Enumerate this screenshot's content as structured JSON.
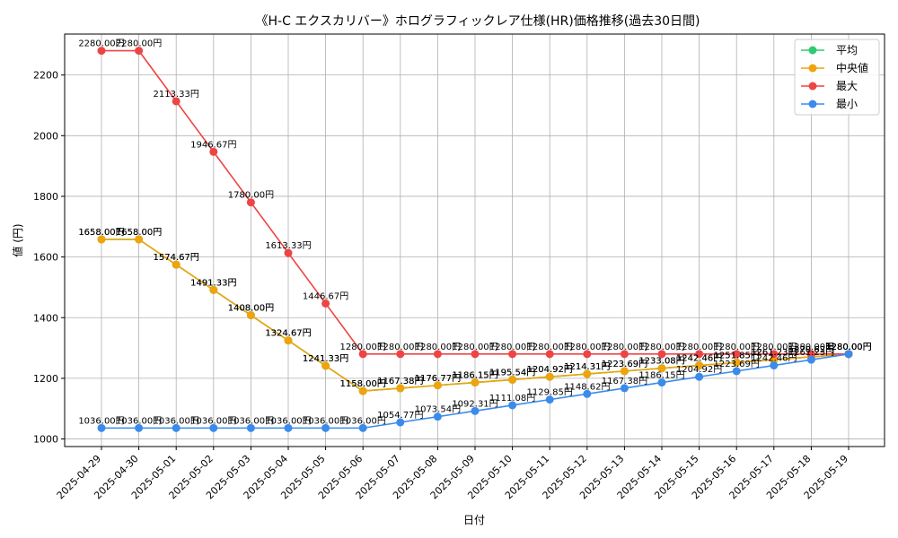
{
  "chart_data": {
    "type": "line",
    "title": "《H-C エクスカリバー》ホログラフィックレア仕様(HR)価格推移(過去30日間)",
    "xlabel": "日付",
    "ylabel": "値 (円)",
    "ylim": [
      975,
      2335
    ],
    "yticks": [
      1000,
      1200,
      1400,
      1600,
      1800,
      2000,
      2200
    ],
    "grid": true,
    "legend_position": "top-right",
    "categories": [
      "2025-04-29",
      "2025-04-30",
      "2025-05-01",
      "2025-05-02",
      "2025-05-03",
      "2025-05-04",
      "2025-05-05",
      "2025-05-06",
      "2025-05-07",
      "2025-05-08",
      "2025-05-09",
      "2025-05-10",
      "2025-05-11",
      "2025-05-12",
      "2025-05-13",
      "2025-05-14",
      "2025-05-15",
      "2025-05-16",
      "2025-05-17",
      "2025-05-18",
      "2025-05-19"
    ],
    "series": [
      {
        "name": "平均",
        "color": "#2ecc71",
        "values": [
          1658.0,
          1658.0,
          1574.67,
          1491.33,
          1408.0,
          1324.67,
          1241.33,
          1158.0,
          1167.38,
          1176.77,
          1186.15,
          1195.54,
          1204.92,
          1214.31,
          1223.69,
          1233.08,
          1242.46,
          1251.85,
          1261.23,
          1270.62,
          1280.0
        ]
      },
      {
        "name": "中央値",
        "color": "#f0a30a",
        "values": [
          1658.0,
          1658.0,
          1574.67,
          1491.33,
          1408.0,
          1324.67,
          1241.33,
          1158.0,
          1167.38,
          1176.77,
          1186.15,
          1195.54,
          1204.92,
          1214.31,
          1223.69,
          1233.08,
          1242.46,
          1251.85,
          1261.23,
          1270.62,
          1280.0
        ]
      },
      {
        "name": "最大",
        "color": "#ef4444",
        "values": [
          2280.0,
          2280.0,
          2113.33,
          1946.67,
          1780.0,
          1613.33,
          1446.67,
          1280.0,
          1280.0,
          1280.0,
          1280.0,
          1280.0,
          1280.0,
          1280.0,
          1280.0,
          1280.0,
          1280.0,
          1280.0,
          1280.0,
          1280.0,
          1280.0
        ]
      },
      {
        "name": "最小",
        "color": "#3b8beb",
        "values": [
          1036.0,
          1036.0,
          1036.0,
          1036.0,
          1036.0,
          1036.0,
          1036.0,
          1036.0,
          1054.77,
          1073.54,
          1092.31,
          1111.08,
          1129.85,
          1148.62,
          1167.38,
          1186.15,
          1204.92,
          1223.69,
          1242.46,
          1261.23,
          1280.0
        ]
      }
    ],
    "data_label_suffix": "円"
  }
}
